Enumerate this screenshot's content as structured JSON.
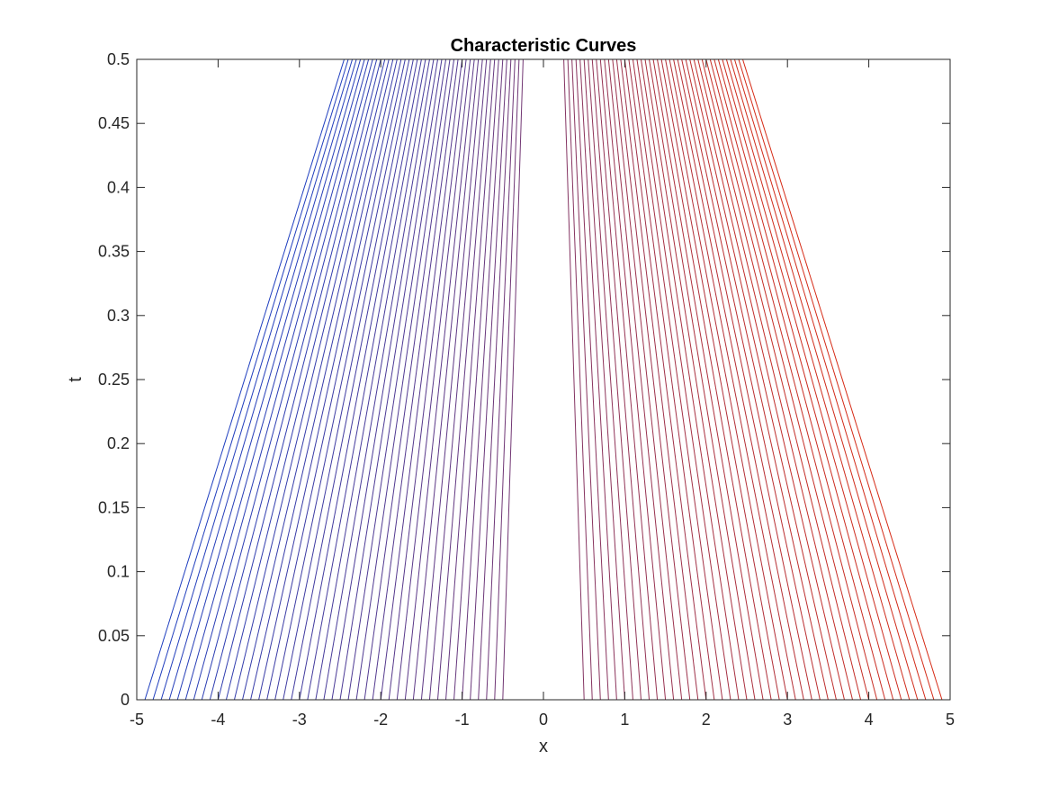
{
  "chart_data": {
    "type": "line",
    "title": "Characteristic Curves",
    "xlabel": "x",
    "ylabel": "t",
    "xlim": [
      -5,
      5
    ],
    "ylim": [
      0,
      0.5
    ],
    "xticks": [
      -5,
      -4,
      -3,
      -2,
      -1,
      0,
      1,
      2,
      3,
      4,
      5
    ],
    "xtick_labels": [
      "-5",
      "-4",
      "-3",
      "-2",
      "-1",
      "0",
      "1",
      "2",
      "3",
      "4",
      "5"
    ],
    "yticks": [
      0,
      0.05,
      0.1,
      0.15,
      0.2,
      0.25,
      0.3,
      0.35,
      0.4,
      0.45,
      0.5
    ],
    "ytick_labels": [
      "0",
      "0.05",
      "0.1",
      "0.15",
      "0.2",
      "0.25",
      "0.3",
      "0.35",
      "0.4",
      "0.45",
      "0.5"
    ],
    "grid": false,
    "box": true,
    "characteristics": {
      "description": "straight lines x(t) = x0 + slope * t",
      "x0_start": -4.9,
      "x0_end": 4.9,
      "x0_step": 0.1,
      "slope_per_x0": -1.0,
      "omitted_x0_range": [
        -0.4,
        0.4
      ]
    },
    "color_start": "#1f3fbf",
    "color_end": "#d62b16"
  }
}
